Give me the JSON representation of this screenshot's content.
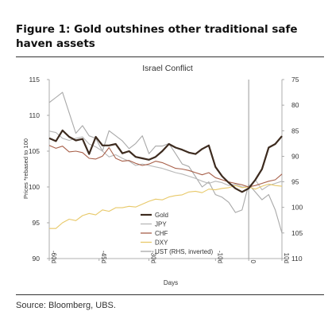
{
  "figure": {
    "title": "Figure 1: Gold outshines other traditional safe haven assets",
    "source": "Source: Bloomberg, UBS."
  },
  "chart_data": {
    "type": "line",
    "title": "Israel Conflict",
    "xlabel": "Days",
    "ylabel": "Prices *rebased to 100",
    "xlim": [
      -60,
      10
    ],
    "xticks": [
      -60,
      -45,
      -30,
      -10,
      0,
      10
    ],
    "xtick_labels": [
      "-60d",
      "-45d",
      "-30d",
      "-10d",
      "0",
      "10d"
    ],
    "ylim": [
      90,
      115
    ],
    "yticks": [
      90,
      95,
      100,
      105,
      110,
      115
    ],
    "y2_label": "UST (RHS, inverted)",
    "y2lim": [
      110,
      75
    ],
    "y2_inverted": true,
    "y2ticks": [
      75,
      80,
      85,
      90,
      95,
      100,
      105,
      110
    ],
    "event_line_x": 0,
    "grid": false,
    "legend_position": "bottom-right",
    "series": [
      {
        "name": "Gold",
        "color": "#3d2b1f",
        "axis": "left",
        "x": [
          -60,
          -58,
          -56,
          -54,
          -52,
          -50,
          -48,
          -46,
          -44,
          -42,
          -40,
          -38,
          -36,
          -34,
          -32,
          -30,
          -28,
          -26,
          -24,
          -22,
          -20,
          -18,
          -16,
          -14,
          -12,
          -10,
          -8,
          -6,
          -4,
          -2,
          0,
          2,
          4,
          6,
          8,
          10
        ],
        "values": [
          106.8,
          106.4,
          107.9,
          107.0,
          106.5,
          106.7,
          104.6,
          107.0,
          105.8,
          105.8,
          106.0,
          104.7,
          105.0,
          104.2,
          104.0,
          103.8,
          104.2,
          105.0,
          106.0,
          105.5,
          105.2,
          104.8,
          104.6,
          105.3,
          105.8,
          102.8,
          101.5,
          100.6,
          99.8,
          99.3,
          99.8,
          101.0,
          102.5,
          105.5,
          106.0,
          107.1
        ]
      },
      {
        "name": "JPY",
        "color": "#b8b8b8",
        "axis": "left",
        "x": [
          -60,
          -58,
          -56,
          -54,
          -52,
          -50,
          -48,
          -46,
          -44,
          -42,
          -40,
          -38,
          -36,
          -34,
          -32,
          -30,
          -28,
          -26,
          -24,
          -22,
          -20,
          -18,
          -16,
          -14,
          -12,
          -10,
          -8,
          -6,
          -4,
          -2,
          0,
          2,
          4,
          6,
          8,
          10
        ],
        "values": [
          107.8,
          107.6,
          106.8,
          106.5,
          106.8,
          107.0,
          106.0,
          105.6,
          105.0,
          104.2,
          104.5,
          104.0,
          103.6,
          103.0,
          103.2,
          103.0,
          102.8,
          102.6,
          102.3,
          102.0,
          101.8,
          101.5,
          101.2,
          100.8,
          100.5,
          100.8,
          100.6,
          100.2,
          100.4,
          100.0,
          100.0,
          101.0,
          99.6,
          100.2,
          100.5,
          100.8
        ]
      },
      {
        "name": "CHF",
        "color": "#a8604a",
        "axis": "left",
        "x": [
          -60,
          -58,
          -56,
          -54,
          -52,
          -50,
          -48,
          -46,
          -44,
          -42,
          -40,
          -38,
          -36,
          -34,
          -32,
          -30,
          -28,
          -26,
          -24,
          -22,
          -20,
          -18,
          -16,
          -14,
          -12,
          -10,
          -8,
          -6,
          -4,
          -2,
          0,
          2,
          4,
          6,
          8,
          10
        ],
        "values": [
          105.8,
          105.4,
          105.7,
          104.9,
          105.0,
          104.8,
          104.0,
          103.9,
          104.3,
          105.5,
          104.0,
          103.6,
          103.7,
          103.3,
          103.0,
          103.2,
          103.6,
          103.4,
          103.0,
          102.6,
          102.5,
          102.3,
          102.0,
          101.7,
          102.0,
          101.3,
          101.0,
          100.7,
          100.5,
          100.3,
          100.0,
          100.2,
          100.5,
          100.8,
          101.0,
          101.8
        ]
      },
      {
        "name": "DXY",
        "color": "#e8c96a",
        "axis": "left",
        "x": [
          -60,
          -58,
          -56,
          -54,
          -52,
          -50,
          -48,
          -46,
          -44,
          -42,
          -40,
          -38,
          -36,
          -34,
          -32,
          -30,
          -28,
          -26,
          -24,
          -22,
          -20,
          -18,
          -16,
          -14,
          -12,
          -10,
          -8,
          -6,
          -4,
          -2,
          0,
          2,
          4,
          6,
          8,
          10
        ],
        "values": [
          94.2,
          94.2,
          95.0,
          95.5,
          95.3,
          96.0,
          96.3,
          96.1,
          96.8,
          96.6,
          97.1,
          97.1,
          97.3,
          97.2,
          97.6,
          98.0,
          98.3,
          98.2,
          98.6,
          98.8,
          98.9,
          99.3,
          99.4,
          99.2,
          99.7,
          99.6,
          99.8,
          99.9,
          100.2,
          99.9,
          100.0,
          99.7,
          100.1,
          100.4,
          100.2,
          100.1
        ]
      },
      {
        "name": "UST (RHS, inverted)",
        "color": "#a8a8a8",
        "axis": "right",
        "x": [
          -60,
          -58,
          -56,
          -54,
          -52,
          -50,
          -48,
          -46,
          -44,
          -42,
          -40,
          -38,
          -36,
          -34,
          -32,
          -30,
          -28,
          -26,
          -24,
          -22,
          -20,
          -18,
          -16,
          -14,
          -12,
          -10,
          -8,
          -6,
          -4,
          -2,
          0,
          2,
          4,
          6,
          8,
          10
        ],
        "values": [
          79.5,
          78.5,
          77.5,
          81.5,
          85.5,
          84.0,
          86.0,
          86.5,
          89.0,
          85.0,
          86.0,
          87.0,
          88.5,
          87.5,
          86.0,
          89.5,
          88.0,
          88.0,
          87.5,
          89.5,
          91.5,
          92.0,
          94.0,
          96.0,
          95.0,
          97.5,
          98.0,
          99.0,
          101.0,
          100.5,
          95.5,
          97.0,
          98.5,
          97.5,
          100.5,
          105.0
        ]
      }
    ]
  }
}
